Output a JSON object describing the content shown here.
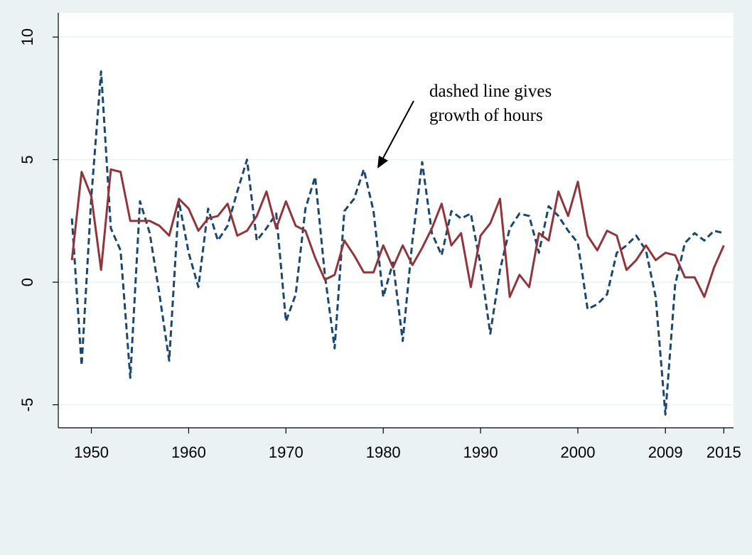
{
  "chart_data": {
    "type": "line",
    "annotation": [
      "dashed line gives",
      "growth of hours"
    ],
    "x": [
      1948,
      1949,
      1950,
      1951,
      1952,
      1953,
      1954,
      1955,
      1956,
      1957,
      1958,
      1959,
      1960,
      1961,
      1962,
      1963,
      1964,
      1965,
      1966,
      1967,
      1968,
      1969,
      1970,
      1971,
      1972,
      1973,
      1974,
      1975,
      1976,
      1977,
      1978,
      1979,
      1980,
      1981,
      1982,
      1983,
      1984,
      1985,
      1986,
      1987,
      1988,
      1989,
      1990,
      1991,
      1992,
      1993,
      1994,
      1995,
      1996,
      1997,
      1998,
      1999,
      2000,
      2001,
      2002,
      2003,
      2004,
      2005,
      2006,
      2007,
      2008,
      2009,
      2010,
      2011,
      2012,
      2013,
      2014,
      2015
    ],
    "series": [
      {
        "color": "#1a476f",
        "dashed": true,
        "values": [
          2.6,
          -3.4,
          3.5,
          8.6,
          2.2,
          1.3,
          -3.9,
          3.3,
          2.0,
          -0.5,
          -3.2,
          3.3,
          1.2,
          -0.2,
          3.0,
          1.7,
          2.3,
          3.7,
          5.0,
          1.7,
          2.2,
          2.8,
          -1.6,
          -0.5,
          3.0,
          4.3,
          0.3,
          -2.7,
          2.9,
          3.4,
          4.6,
          2.9,
          -0.6,
          0.8,
          -2.4,
          1.7,
          4.9,
          2.0,
          1.1,
          2.9,
          2.6,
          2.8,
          0.7,
          -2.1,
          0.5,
          2.2,
          2.8,
          2.7,
          1.2,
          3.1,
          2.7,
          2.1,
          1.6,
          -1.1,
          -0.9,
          -0.5,
          1.2,
          1.5,
          1.9,
          1.3,
          -0.6,
          -5.4,
          -0.1,
          1.6,
          2.0,
          1.7,
          2.1,
          2.0
        ]
      },
      {
        "color": "#90353b",
        "dashed": false,
        "values": [
          0.9,
          4.5,
          3.5,
          0.5,
          4.6,
          4.5,
          2.5,
          2.5,
          2.5,
          2.3,
          1.9,
          3.4,
          3.0,
          2.1,
          2.6,
          2.7,
          3.2,
          1.9,
          2.1,
          2.7,
          3.7,
          2.2,
          3.3,
          2.3,
          2.1,
          1.0,
          0.1,
          0.3,
          1.7,
          1.1,
          0.4,
          0.4,
          1.5,
          0.6,
          1.5,
          0.7,
          1.4,
          2.2,
          3.2,
          1.5,
          2.0,
          -0.2,
          1.9,
          2.4,
          3.4,
          -0.6,
          0.3,
          -0.2,
          2.0,
          1.7,
          3.7,
          2.7,
          4.1,
          1.9,
          1.3,
          2.1,
          1.9,
          0.5,
          0.9,
          1.5,
          0.9,
          1.2,
          1.1,
          0.2,
          0.2,
          -0.6,
          0.6,
          1.5
        ]
      }
    ],
    "xlim": [
      1946.6,
      2016
    ],
    "xticks": [
      1950,
      1960,
      1970,
      1980,
      1990,
      2000,
      2009,
      2015
    ],
    "ylim": [
      -5.94,
      10.99
    ],
    "yticks": [
      -5,
      0,
      5,
      10
    ],
    "grid": true
  }
}
